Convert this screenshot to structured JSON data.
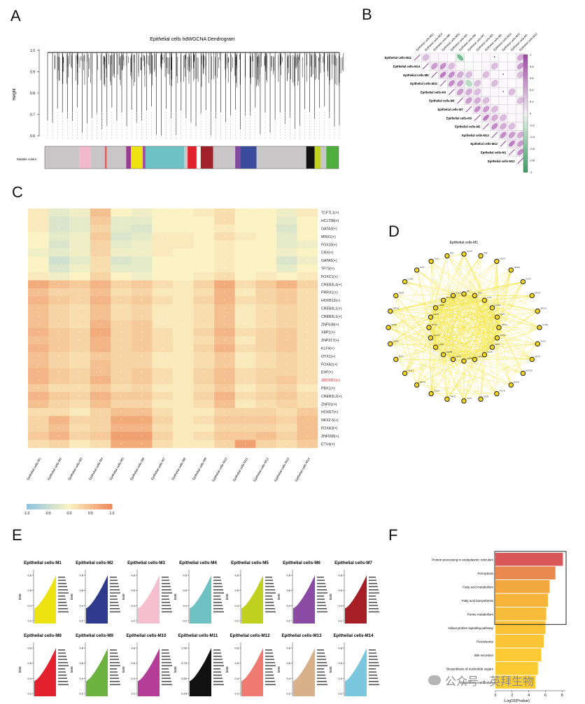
{
  "panels": {
    "A": "A",
    "B": "B",
    "C": "C",
    "D": "D",
    "E": "E",
    "F": "F"
  },
  "panelA": {
    "title": "Epithelial cells hdWGCNA Dendrogram",
    "ylabel": "Height",
    "yticks": [
      "1.0",
      "0.9",
      "0.8",
      "0.7",
      "0.6"
    ],
    "module_label": "Module colors",
    "module_colors": [
      "#c8c6c6",
      "#f1b9cb",
      "#c8c6c6",
      "#d9656a",
      "#c8c6c6",
      "#9b3a91",
      "#ede313",
      "#a74ca2",
      "#6ec2c3",
      "#c8c6c6",
      "#e2222b",
      "#ffffff",
      "#a02128",
      "#c8c6c6",
      "#844a9f",
      "#3b4c9d",
      "#c8c6c6",
      "#c8c6c6",
      "#111111",
      "#c0d21f",
      "#c8c6c6",
      "#4fae3d"
    ]
  },
  "panelB": {
    "row_labels": [
      "Epithelial cells-M11",
      "Epithelial cells-M14",
      "Epithelial cells-M8",
      "Epithelial cells-M10",
      "Epithelial cells-M3",
      "Epithelial cells-M6",
      "Epithelial cells-M7",
      "Epithelial cells-M3",
      "Epithelial cells-M2",
      "Epithelial cells-M13",
      "Epithelial cells-M12",
      "Epithelial cells-M1",
      "Epithelial cells-M12"
    ],
    "col_labels": [
      "Epithelial cells-M11",
      "Epithelial cells-M14",
      "Epithelial cells-M8",
      "Epithelial cells-M10",
      "Epithelial cells-M3",
      "Epithelial cells-M6",
      "Epithelial cells-M7",
      "Epithelial cells-M3",
      "Epithelial cells-M2",
      "Epithelial cells-M13",
      "Epithelial cells-M12",
      "Epithelial cells-M1",
      "Epithelial cells-M12"
    ],
    "legend_ticks": [
      "1",
      "0.8",
      "0.6",
      "0.4",
      "0.2",
      "0",
      "-0.2",
      "-0.4",
      "-0.6",
      "-0.8",
      "-1"
    ],
    "correlations": [
      [
        1,
        0.3,
        0.25,
        0.2,
        0.1,
        -0.7,
        0.05,
        0.1,
        0.2,
        0.15,
        0.1,
        0.05,
        0.4
      ],
      [
        0,
        1,
        0.5,
        0.6,
        0.3,
        0.2,
        -0.2,
        0.1,
        0.2,
        0.3,
        0.1,
        0.2,
        0.5
      ],
      [
        0,
        0,
        1,
        0.7,
        0.6,
        0.4,
        0.3,
        0.2,
        0.3,
        0.2,
        0.1,
        0.2,
        0.3
      ],
      [
        0,
        0,
        0,
        1,
        0.6,
        0.5,
        -0.3,
        0.3,
        0.2,
        0.3,
        0.2,
        0.1,
        0.2
      ],
      [
        0,
        0,
        0,
        0,
        1,
        0.5,
        0.4,
        0.3,
        0.2,
        0.2,
        0.1,
        0.3,
        -0.2
      ],
      [
        0,
        0,
        0,
        0,
        0,
        1,
        0.5,
        0.4,
        0.3,
        0.2,
        0.2,
        0.1,
        0.3
      ],
      [
        0,
        0,
        0,
        0,
        0,
        0,
        1,
        0.6,
        0.5,
        0.3,
        0.2,
        0.2,
        0.2
      ],
      [
        0,
        0,
        0,
        0,
        0,
        0,
        0,
        1,
        0.7,
        0.4,
        0.3,
        0.2,
        0.2
      ],
      [
        0,
        0,
        0,
        0,
        0,
        0,
        0,
        0,
        1,
        0.6,
        0.4,
        0.3,
        0.2
      ],
      [
        0,
        0,
        0,
        0,
        0,
        0,
        0,
        0,
        0,
        1,
        0.6,
        0.5,
        0.4
      ],
      [
        0,
        0,
        0,
        0,
        0,
        0,
        0,
        0,
        0,
        0,
        1,
        0.7,
        0.5
      ],
      [
        0,
        0,
        0,
        0,
        0,
        0,
        0,
        0,
        0,
        0,
        0,
        1,
        0.6
      ],
      [
        0,
        0,
        0,
        0,
        0,
        0,
        0,
        0,
        0,
        0,
        0,
        0,
        1
      ]
    ]
  },
  "panelC": {
    "genes": [
      "TCF7L1(+)",
      "HCLT98(+)",
      "GATA3(+)",
      "MNX1(+)",
      "FOXJ3(+)",
      "CRX(+)",
      "GATA5(+)",
      "TP73(+)",
      "FOXC1(+)",
      "CREB3L4(+)",
      "PRRX1(+)",
      "HOXB13(+)",
      "CREB3L1(+)",
      "CREB3L1(+)",
      "ZNF638(+)",
      "XBP1(+)",
      "ZNP217(+)",
      "KLF4(+)",
      "OTX1(+)",
      "FOXA1(+)",
      "EHF(+)",
      "ZBOXB1(+)",
      "PBX1(+)",
      "CREB3L2(+)",
      "ZNF81(+)",
      "HOXB7(+)",
      "NKX2-5(+)",
      "FOXA3(+)",
      "ZNF558(+)",
      "ETV4(+)"
    ],
    "highlight_index": 21,
    "modules": [
      "Epithelial cells-M1",
      "Epithelial cells-M2",
      "Epithelial cells-M3",
      "Epithelial cells-M4",
      "Epithelial cells-M5",
      "Epithelial cells-M6",
      "Epithelial cells-M7",
      "Epithelial cells-M8",
      "Epithelial cells-M9",
      "Epithelial cells-M10",
      "Epithelial cells-M11",
      "Epithelial cells-M12",
      "Epithelial cells-M13",
      "Epithelial cells-M14"
    ],
    "legend_ticks": [
      "-1.0",
      "-0.5",
      "0.0",
      "0.5",
      "1.0"
    ],
    "values": [
      [
        0.1,
        -0.2,
        -0.1,
        0.5,
        0.0,
        -0.1,
        0.0,
        0.0,
        0.1,
        0.2,
        0.0,
        0.0,
        -0.1,
        0.1
      ],
      [
        0.1,
        -0.3,
        -0.2,
        0.4,
        -0.2,
        -0.2,
        0.0,
        0.0,
        0.0,
        0.2,
        0.0,
        0.0,
        -0.2,
        0.0
      ],
      [
        0.1,
        -0.3,
        -0.2,
        0.3,
        -0.2,
        -0.3,
        0.0,
        0.0,
        0.0,
        0.1,
        0.0,
        0.0,
        -0.3,
        0.0
      ],
      [
        0.0,
        -0.2,
        -0.1,
        0.4,
        -0.3,
        -0.2,
        0.1,
        0.1,
        0.0,
        0.2,
        0.1,
        0.0,
        -0.2,
        0.0
      ],
      [
        0.0,
        -0.3,
        -0.1,
        0.3,
        -0.2,
        -0.1,
        0.1,
        0.1,
        0.0,
        0.1,
        0.0,
        0.0,
        -0.2,
        -0.1
      ],
      [
        -0.1,
        -0.2,
        -0.1,
        0.3,
        -0.1,
        -0.1,
        0.1,
        0.0,
        0.0,
        0.1,
        0.0,
        0.0,
        -0.1,
        0.0
      ],
      [
        0.0,
        -0.4,
        -0.2,
        0.2,
        -0.3,
        -0.2,
        0.0,
        0.0,
        0.0,
        0.1,
        0.0,
        0.0,
        -0.3,
        -0.1
      ],
      [
        0.0,
        -0.3,
        -0.1,
        0.2,
        -0.2,
        -0.2,
        0.0,
        0.0,
        0.0,
        0.1,
        0.0,
        0.0,
        -0.2,
        0.0
      ],
      [
        0.1,
        -0.1,
        0.0,
        0.3,
        0.0,
        -0.1,
        0.0,
        0.0,
        0.1,
        0.2,
        0.0,
        0.1,
        0.0,
        0.1
      ],
      [
        0.7,
        0.5,
        0.4,
        0.6,
        0.3,
        0.4,
        0.2,
        0.1,
        0.3,
        0.7,
        0.2,
        0.4,
        0.6,
        0.3
      ],
      [
        0.5,
        0.3,
        0.3,
        0.5,
        0.2,
        0.3,
        0.1,
        0.1,
        0.2,
        0.6,
        0.1,
        0.3,
        0.4,
        0.2
      ],
      [
        0.6,
        0.4,
        0.3,
        0.6,
        0.3,
        0.4,
        0.2,
        0.1,
        0.3,
        0.6,
        0.2,
        0.3,
        0.4,
        0.2
      ],
      [
        0.5,
        0.3,
        0.2,
        0.5,
        0.2,
        0.3,
        0.1,
        0.1,
        0.2,
        0.5,
        0.1,
        0.2,
        0.3,
        0.2
      ],
      [
        0.5,
        0.3,
        0.2,
        0.5,
        0.2,
        0.3,
        0.1,
        0.1,
        0.2,
        0.5,
        0.1,
        0.2,
        0.3,
        0.2
      ],
      [
        0.5,
        0.3,
        0.2,
        0.6,
        0.3,
        0.4,
        0.1,
        0.1,
        0.2,
        0.5,
        0.1,
        0.2,
        0.3,
        0.2
      ],
      [
        0.6,
        0.4,
        0.3,
        0.7,
        0.3,
        0.4,
        0.2,
        0.1,
        0.3,
        0.6,
        0.2,
        0.3,
        0.4,
        0.2
      ],
      [
        0.5,
        0.4,
        0.3,
        0.6,
        0.3,
        0.4,
        0.2,
        0.1,
        0.2,
        0.5,
        0.1,
        0.3,
        0.4,
        0.2
      ],
      [
        0.6,
        0.4,
        0.3,
        0.6,
        0.3,
        0.4,
        0.2,
        0.1,
        0.3,
        0.6,
        0.2,
        0.3,
        0.4,
        0.2
      ],
      [
        0.5,
        0.3,
        0.2,
        0.4,
        0.3,
        0.3,
        0.1,
        0.1,
        0.2,
        0.4,
        0.1,
        0.2,
        0.3,
        0.2
      ],
      [
        0.5,
        0.3,
        0.2,
        0.5,
        0.3,
        0.3,
        0.1,
        0.1,
        0.2,
        0.4,
        0.1,
        0.2,
        0.3,
        0.2
      ],
      [
        0.6,
        0.4,
        0.3,
        0.5,
        0.3,
        0.4,
        0.2,
        0.1,
        0.3,
        0.5,
        0.2,
        0.3,
        0.3,
        0.2
      ],
      [
        0.6,
        0.4,
        0.3,
        0.6,
        0.3,
        0.4,
        0.2,
        0.1,
        0.3,
        0.5,
        0.2,
        0.3,
        0.4,
        0.2
      ],
      [
        0.4,
        0.2,
        0.2,
        0.4,
        0.2,
        0.3,
        0.1,
        0.1,
        0.2,
        0.4,
        0.1,
        0.2,
        0.3,
        0.1
      ],
      [
        0.6,
        0.4,
        0.3,
        0.6,
        0.4,
        0.4,
        0.2,
        0.1,
        0.3,
        0.6,
        0.2,
        0.3,
        0.4,
        0.2
      ],
      [
        0.5,
        0.3,
        0.2,
        0.5,
        0.3,
        0.3,
        0.1,
        0.1,
        0.2,
        0.5,
        0.1,
        0.2,
        0.3,
        0.2
      ],
      [
        0.2,
        0.2,
        0.1,
        0.3,
        0.5,
        0.5,
        0.2,
        0.1,
        0.1,
        0.3,
        0.3,
        0.3,
        0.2,
        0.4
      ],
      [
        0.3,
        0.6,
        0.3,
        0.3,
        0.7,
        0.7,
        0.3,
        0.1,
        0.2,
        0.4,
        0.4,
        0.4,
        0.3,
        0.5
      ],
      [
        0.3,
        0.5,
        0.2,
        0.3,
        0.6,
        0.6,
        0.2,
        0.1,
        0.1,
        0.3,
        0.3,
        0.3,
        0.2,
        0.5
      ],
      [
        0.4,
        0.6,
        0.3,
        0.4,
        0.8,
        0.8,
        0.3,
        0.1,
        0.2,
        0.4,
        0.4,
        0.5,
        0.3,
        0.5
      ],
      [
        0.2,
        0.3,
        0.1,
        0.2,
        0.7,
        0.7,
        0.2,
        0.1,
        0.1,
        0.3,
        0.8,
        0.3,
        0.2,
        0.4
      ]
    ]
  },
  "panelD": {
    "title": "Epithelial cells-M1",
    "outer_nodes": [
      "SOX4",
      "ZNF",
      "CDKN",
      "NDRG",
      "KLF5",
      "MT2A",
      "SPON",
      "CLDN",
      "TACS",
      "KRT8",
      "KRT18",
      "ELF3",
      "FXYD",
      "S100",
      "LGAL",
      "TM4S",
      "CD24",
      "EPCA",
      "MUC1",
      "TFF3",
      "AGR2",
      "SPDE",
      "WFDC",
      "PIGR",
      "LCN2",
      "SLPI",
      "CXCL",
      "IFI6"
    ],
    "inner_nodes": [
      "ID1",
      "JUN",
      "FOS",
      "EGR1",
      "IER2",
      "ATF3",
      "DUSP",
      "ZFP3",
      "KLF6",
      "NR4A",
      "GADD",
      "PPP1",
      "RHOB",
      "CCN1",
      "SOCS",
      "BTG2",
      "HES1",
      "CEBP",
      "MYC",
      "TSC2"
    ]
  },
  "panelE": {
    "modules": [
      {
        "title": "Epithelial cells-M1",
        "color": "#ede313",
        "yticks": [
          "0.8",
          "0.6",
          "0.4",
          "0.2"
        ]
      },
      {
        "title": "Epithelial cells-M2",
        "color": "#2e3a8c",
        "yticks": [
          "0.8",
          "0.6",
          "0.4",
          "0.2"
        ]
      },
      {
        "title": "Epithelial cells-M3",
        "color": "#f5bfd0",
        "yticks": [
          "0.8",
          "0.6",
          "0.4",
          "0.2"
        ]
      },
      {
        "title": "Epithelial cells-M4",
        "color": "#6ec2c3",
        "yticks": [
          "0.8",
          "0.6",
          "0.4",
          "0.2"
        ]
      },
      {
        "title": "Epithelial cells-M5",
        "color": "#c0d21f",
        "yticks": [
          "0.8",
          "0.6",
          "0.4",
          "0.2"
        ]
      },
      {
        "title": "Epithelial cells-M6",
        "color": "#8b4aa3",
        "yticks": [
          "0.8",
          "0.6",
          "0.4",
          "0.2"
        ]
      },
      {
        "title": "Epithelial cells-M7",
        "color": "#a51f24",
        "yticks": [
          "0.8",
          "0.6",
          "0.4",
          "0.2"
        ]
      },
      {
        "title": "Epithelial cells-M8",
        "color": "#e3202d",
        "yticks": [
          "0.8",
          "0.6",
          "0.4",
          "0.2"
        ]
      },
      {
        "title": "Epithelial cells-M9",
        "color": "#6cb33f",
        "yticks": [
          "0.8",
          "0.6",
          "0.4",
          "0.2"
        ]
      },
      {
        "title": "Epithelial cells-M10",
        "color": "#b43d97",
        "yticks": [
          "0.8",
          "0.6",
          "0.4",
          "0.2"
        ]
      },
      {
        "title": "Epithelial cells-M11",
        "color": "#111111",
        "yticks": [
          "1.00",
          "0.75",
          "0.50",
          "0.25"
        ]
      },
      {
        "title": "Epithelial cells-M12",
        "color": "#ef7a6f",
        "yticks": [
          "0.8",
          "0.6",
          "0.4",
          "0.2"
        ]
      },
      {
        "title": "Epithelial cells-M13",
        "color": "#d8b18a",
        "yticks": [
          "0.8",
          "0.6",
          "0.4",
          "0.2"
        ]
      },
      {
        "title": "Epithelial cells-M14",
        "color": "#7ac7df",
        "yticks": [
          "0.8",
          "0.6",
          "0.4",
          "0.2"
        ]
      }
    ],
    "ylabel": "kME"
  },
  "chart_data": {
    "type": "bar",
    "orientation": "horizontal",
    "categories": [
      "Protein processing in endoplasmic reticulum",
      "Ferroptosis",
      "Fatty acid metabolism",
      "Fatty acid biosynthesis",
      "Purine metabolism",
      "Adipocytokine signaling pathway",
      "Peroxisome",
      "Bile secretion",
      "Biosynthesis of nucleotide sugars",
      "Glutathione metabolism"
    ],
    "values": [
      8.1,
      7.2,
      6.5,
      6.3,
      6.1,
      6.0,
      5.8,
      5.5,
      5.1,
      4.8
    ],
    "colors": [
      "#d9595a",
      "#e88a4f",
      "#f2a73f",
      "#f6b53a",
      "#f8bd38",
      "#f9c236",
      "#fac635",
      "#fbc934",
      "#fbcb34",
      "#fbcd34"
    ],
    "xlabel": "-Log10(Pvalue)",
    "xticks": [
      "0",
      "2",
      "4",
      "6",
      "8"
    ],
    "xlim": [
      0,
      8.4
    ]
  },
  "watermark": {
    "text": "公众号 · 英拜生物"
  }
}
